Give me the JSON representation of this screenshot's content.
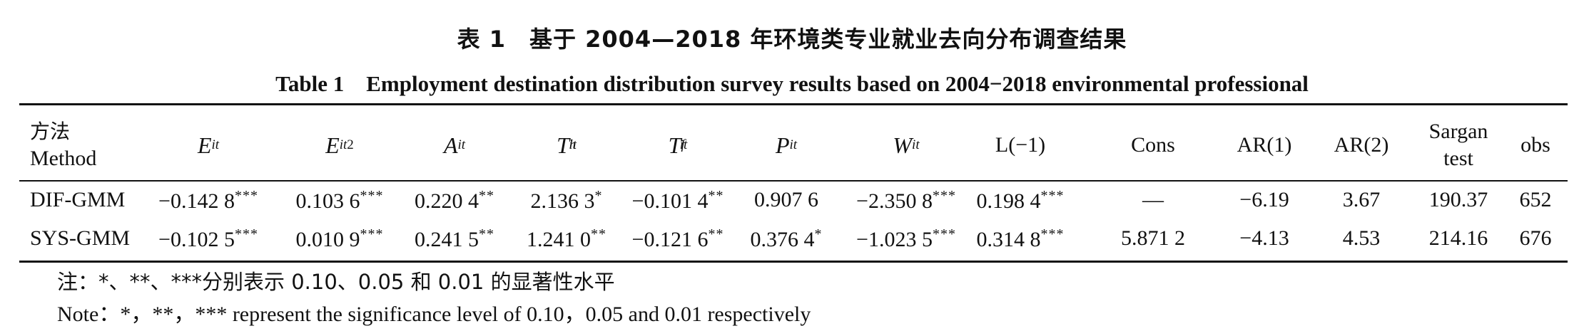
{
  "title_cn": "表 1　基于 2004—2018 年环境类专业就业去向分布调查结果",
  "title_en": "Table 1　Employment destination distribution survey results based on 2004−2018 environmental professional",
  "header": {
    "method_cn": "方法",
    "method_en": "Method",
    "columns": [
      {
        "sym": "E",
        "sub": "it",
        "sup": ""
      },
      {
        "sym": "E",
        "sub": "it",
        "sup": "2"
      },
      {
        "sym": "A",
        "sub": "it",
        "sup": ""
      },
      {
        "sym": "T",
        "sub": "it",
        "sup": "h"
      },
      {
        "sym": "T",
        "sub": "it",
        "sup": "f"
      },
      {
        "sym": "P",
        "sub": "it",
        "sup": ""
      },
      {
        "sym": "W",
        "sub": "it",
        "sup": ""
      }
    ],
    "lag": "L(−1)",
    "cons": "Cons",
    "ar1": "AR(1)",
    "ar2": "AR(2)",
    "sargan_l1": "Sargan",
    "sargan_l2": "test",
    "obs": "obs"
  },
  "rows": [
    {
      "method": "DIF-GMM",
      "values": [
        {
          "v": "−0.142 8",
          "s": "***"
        },
        {
          "v": "0.103 6",
          "s": "***"
        },
        {
          "v": "0.220 4",
          "s": "**"
        },
        {
          "v": "2.136 3",
          "s": "*"
        },
        {
          "v": "−0.101 4",
          "s": "**"
        },
        {
          "v": "0.907 6",
          "s": ""
        },
        {
          "v": "−2.350 8",
          "s": "***"
        },
        {
          "v": "0.198 4",
          "s": "***"
        },
        {
          "v": "—",
          "s": ""
        },
        {
          "v": "−6.19",
          "s": ""
        },
        {
          "v": "3.67",
          "s": ""
        },
        {
          "v": "190.37",
          "s": ""
        },
        {
          "v": "652",
          "s": ""
        }
      ]
    },
    {
      "method": "SYS-GMM",
      "values": [
        {
          "v": "−0.102 5",
          "s": "***"
        },
        {
          "v": "0.010 9",
          "s": "***"
        },
        {
          "v": "0.241 5",
          "s": "**"
        },
        {
          "v": "1.241 0",
          "s": "**"
        },
        {
          "v": "−0.121 6",
          "s": "**"
        },
        {
          "v": "0.376 4",
          "s": "*"
        },
        {
          "v": "−1.023 5",
          "s": "***"
        },
        {
          "v": "0.314 8",
          "s": "***"
        },
        {
          "v": "5.871 2",
          "s": ""
        },
        {
          "v": "−4.13",
          "s": ""
        },
        {
          "v": "4.53",
          "s": ""
        },
        {
          "v": "214.16",
          "s": ""
        },
        {
          "v": "676",
          "s": ""
        }
      ]
    }
  ],
  "note_cn": "注：*、**、***分别表示 0.10、0.05 和 0.01 的显著性水平",
  "note_en": "Note：*，**，*** represent the significance level of 0.10，0.05 and 0.01 respectively"
}
